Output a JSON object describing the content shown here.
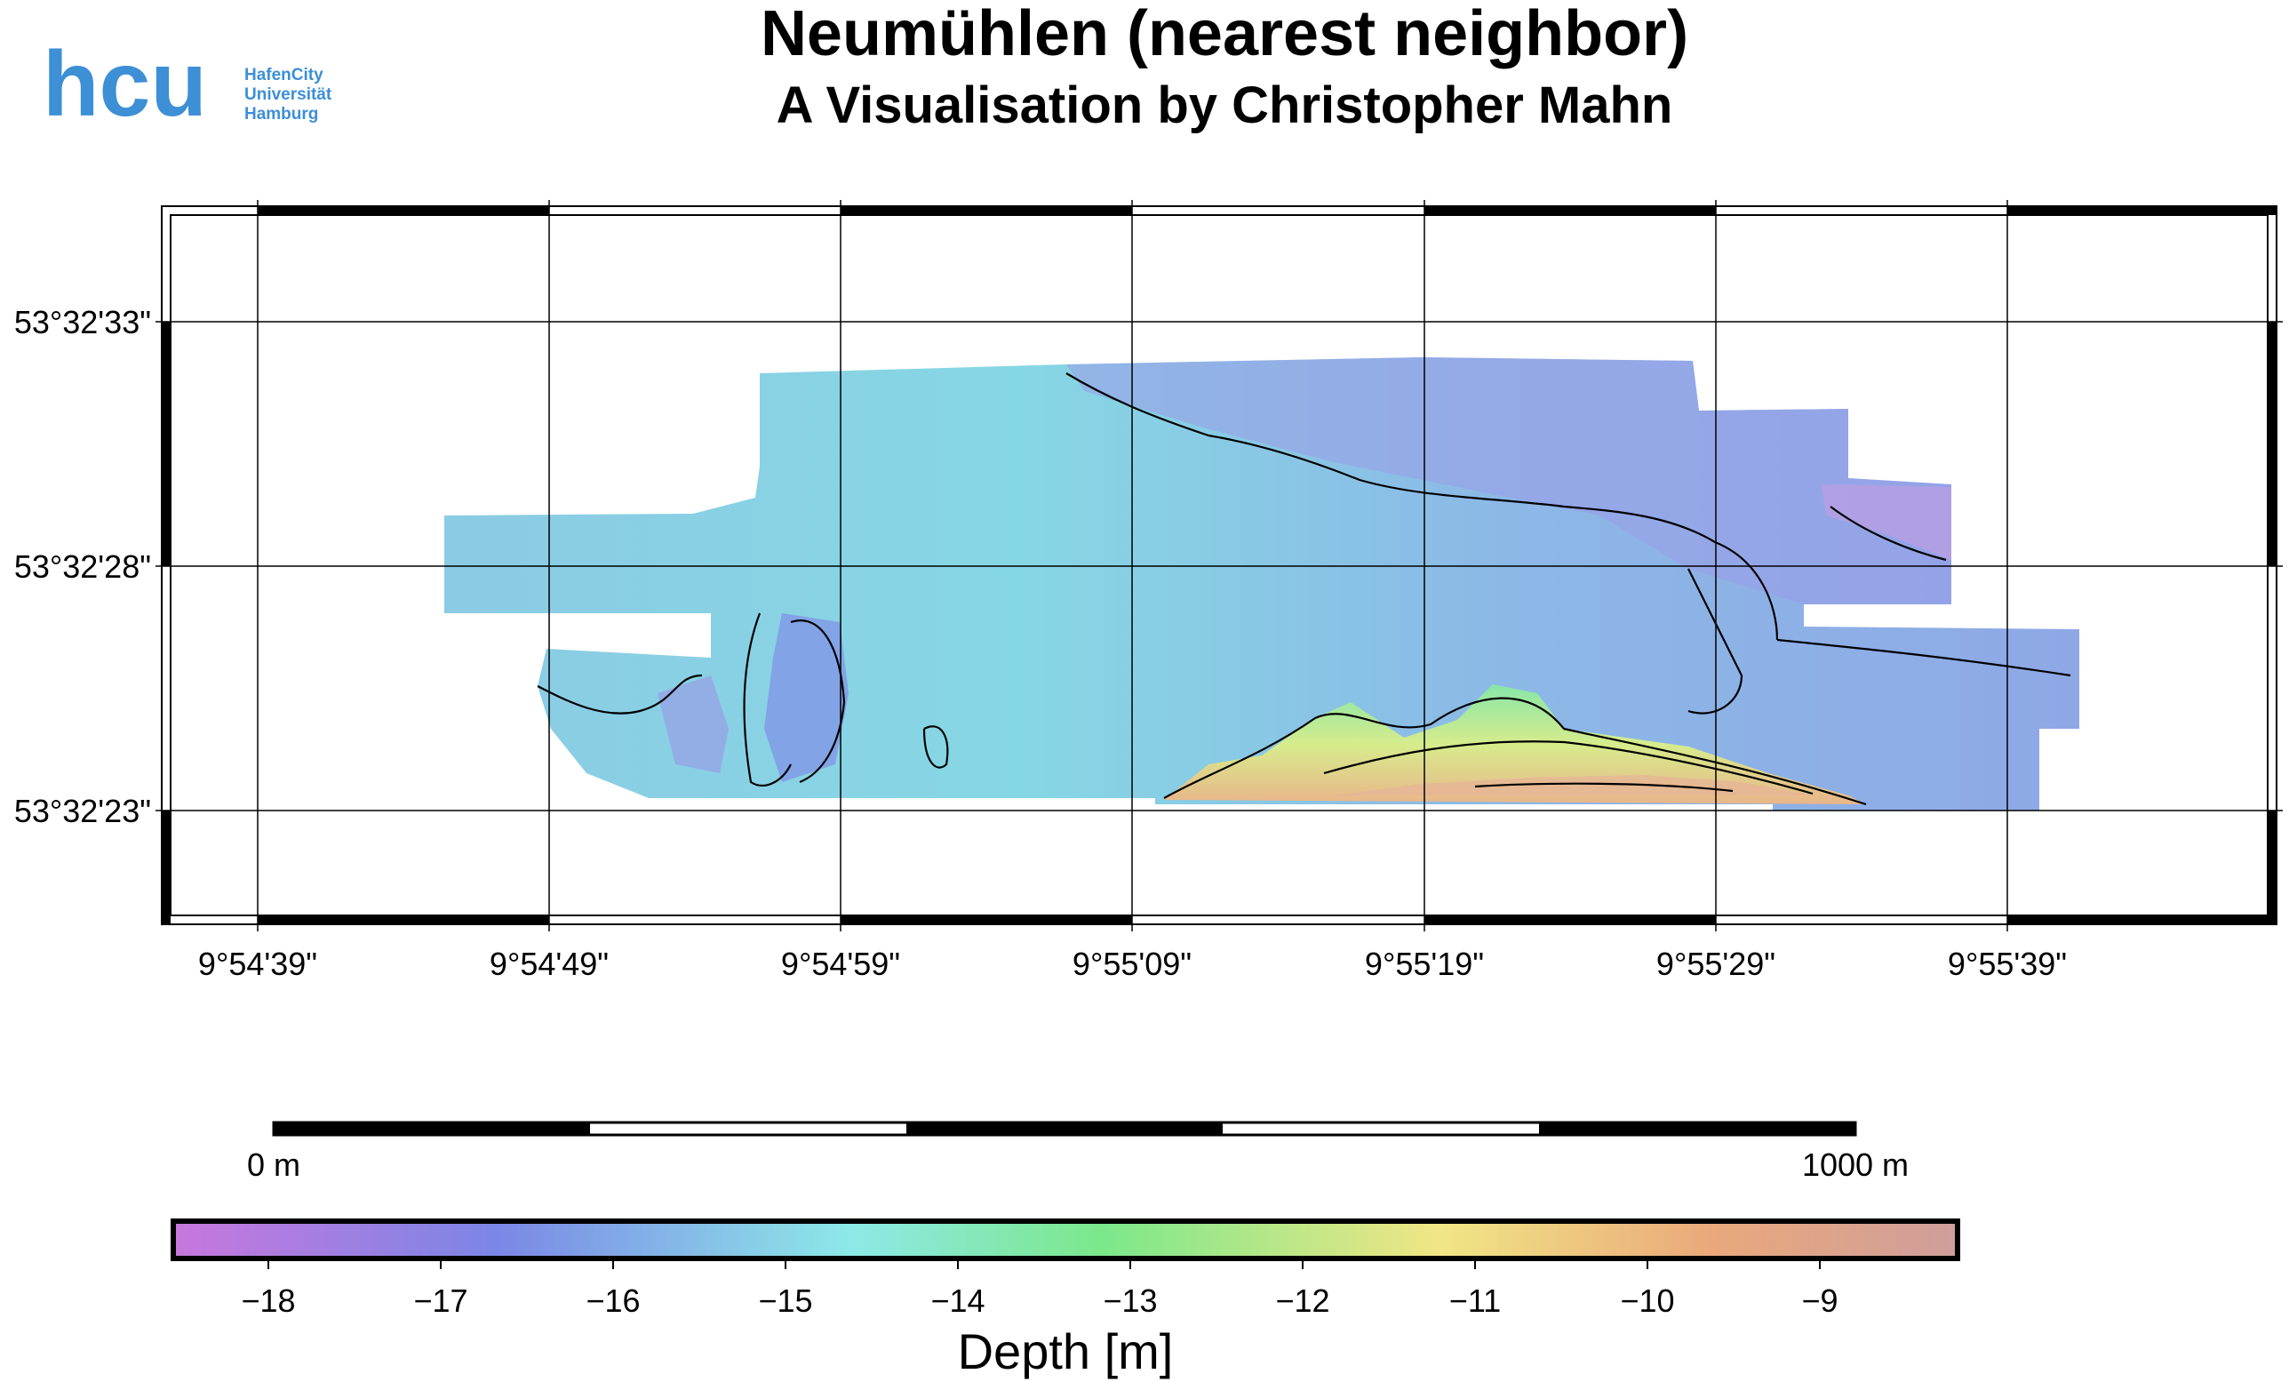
{
  "title": "Neumühlen (nearest neighbor)",
  "subtitle": "A Visualisation by Christopher Mahn",
  "logo": {
    "wordmark": "hcu",
    "lines": [
      "HafenCity",
      "Universität",
      "Hamburg"
    ],
    "color": "#3d8fd6"
  },
  "map": {
    "lon_ticks": [
      "9°54'39\"",
      "9°54'49\"",
      "9°54'59\"",
      "9°55'09\"",
      "9°55'19\"",
      "9°55'29\"",
      "9°55'39\""
    ],
    "lat_ticks": [
      "53°32'33\"",
      "53°32'28\"",
      "53°32'23\""
    ]
  },
  "scale_bar": {
    "start_label": "0 m",
    "end_label": "1000 m"
  },
  "colorbar": {
    "label": "Depth [m]",
    "ticks": [
      "−18",
      "−17",
      "−16",
      "−15",
      "−14",
      "−13",
      "−12",
      "−11",
      "−10",
      "−9"
    ],
    "colors": [
      "#c877dd",
      "#7b86e6",
      "#8de9e8",
      "#7be88b",
      "#f1e685",
      "#eaa97b",
      "#cf9e9c"
    ]
  }
}
